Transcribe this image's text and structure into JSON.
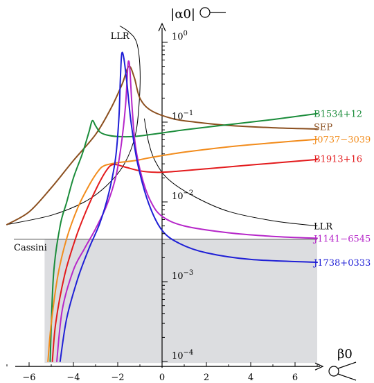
{
  "chart_data": {
    "type": "line",
    "title": "",
    "xlabel": "β0",
    "ylabel": "|α0|",
    "xlim": [
      -7.2,
      7.2
    ],
    "ylog": true,
    "ylim": [
      8e-05,
      1.8
    ],
    "grid": false,
    "x_ticks": [
      -6,
      -4,
      -2,
      0,
      2,
      4,
      6
    ],
    "x_tick_labels": [
      "−6",
      "−4",
      "−2",
      "0",
      "2",
      "4",
      "6"
    ],
    "y_ticks": [
      {
        "value": 1.0,
        "base": "10",
        "exp": "0"
      },
      {
        "value": 0.1,
        "base": "10",
        "exp": "−1"
      },
      {
        "value": 0.01,
        "base": "10",
        "exp": "−2"
      },
      {
        "value": 0.001,
        "base": "10",
        "exp": "−3"
      },
      {
        "value": 0.0001,
        "base": "10",
        "exp": "−4"
      }
    ],
    "cassini": {
      "label": "Cassini",
      "value": 0.0034,
      "color": "#555555",
      "shade_color": "#dcdde0",
      "shade_x": [
        -5.3,
        7.0
      ]
    },
    "series": [
      {
        "name": "LLR",
        "color": "#000000",
        "points": [
          [
            -7.0,
            0.0052
          ],
          [
            -5.0,
            0.0068
          ],
          [
            -3.5,
            0.01
          ],
          [
            -2.5,
            0.016
          ],
          [
            -1.7,
            0.03
          ],
          [
            -1.2,
            0.07
          ],
          [
            -1.02,
            0.2
          ],
          [
            -1.0,
            0.5
          ],
          [
            -1.15,
            1.0
          ],
          [
            -1.5,
            1.35
          ],
          [
            -1.9,
            1.6
          ]
        ]
      },
      {
        "name": "LLR",
        "color": "#000000",
        "points": [
          [
            -0.8,
            0.11
          ],
          [
            -0.6,
            0.055
          ],
          [
            -0.3,
            0.032
          ],
          [
            0.3,
            0.019
          ],
          [
            1.5,
            0.0115
          ],
          [
            3.0,
            0.0076
          ],
          [
            5.0,
            0.0058
          ],
          [
            7.0,
            0.005
          ]
        ]
      },
      {
        "name": "SEP",
        "color": "#8b4f1f",
        "points": [
          [
            -7.0,
            0.0052
          ],
          [
            -6.0,
            0.0075
          ],
          [
            -5.0,
            0.015
          ],
          [
            -4.0,
            0.033
          ],
          [
            -3.0,
            0.07
          ],
          [
            -2.3,
            0.15
          ],
          [
            -1.8,
            0.3
          ],
          [
            -1.5,
            0.5
          ],
          [
            -1.25,
            0.36
          ],
          [
            -1.0,
            0.2
          ],
          [
            -0.5,
            0.14
          ],
          [
            0.5,
            0.11
          ],
          [
            1.5,
            0.1
          ],
          [
            3.0,
            0.091
          ],
          [
            5.0,
            0.085
          ],
          [
            7.0,
            0.082
          ]
        ]
      },
      {
        "name": "B1534+12",
        "color": "#1a8c3a",
        "points": [
          [
            -5.05,
            0.0001
          ],
          [
            -4.9,
            0.0012
          ],
          [
            -4.6,
            0.005
          ],
          [
            -4.3,
            0.01
          ],
          [
            -4.0,
            0.02
          ],
          [
            -3.6,
            0.04
          ],
          [
            -3.3,
            0.075
          ],
          [
            -3.15,
            0.104
          ],
          [
            -3.0,
            0.09
          ],
          [
            -2.8,
            0.075
          ],
          [
            -2.5,
            0.069
          ],
          [
            -2.0,
            0.066
          ],
          [
            -1.3,
            0.066
          ],
          [
            -0.5,
            0.07
          ],
          [
            1.0,
            0.08
          ],
          [
            3.0,
            0.093
          ],
          [
            5.0,
            0.108
          ],
          [
            7.0,
            0.128
          ]
        ]
      },
      {
        "name": "J0737−3039",
        "color": "#f28c1c",
        "points": [
          [
            -5.15,
            0.0001
          ],
          [
            -5.0,
            0.0003
          ],
          [
            -4.7,
            0.0012
          ],
          [
            -4.3,
            0.0035
          ],
          [
            -3.8,
            0.0085
          ],
          [
            -3.3,
            0.016
          ],
          [
            -2.9,
            0.024
          ],
          [
            -2.6,
            0.0285
          ],
          [
            -2.0,
            0.031
          ],
          [
            -1.2,
            0.033
          ],
          [
            -0.5,
            0.036
          ],
          [
            1.0,
            0.042
          ],
          [
            3.0,
            0.049
          ],
          [
            5.0,
            0.055
          ],
          [
            7.0,
            0.061
          ]
        ]
      },
      {
        "name": "B1913+16",
        "color": "#e31a1c",
        "points": [
          [
            -4.95,
            0.0001
          ],
          [
            -4.8,
            0.0003
          ],
          [
            -4.4,
            0.0012
          ],
          [
            -3.9,
            0.0035
          ],
          [
            -3.4,
            0.008
          ],
          [
            -2.9,
            0.016
          ],
          [
            -2.5,
            0.025
          ],
          [
            -2.2,
            0.0295
          ],
          [
            -1.7,
            0.0275
          ],
          [
            -1.0,
            0.0245
          ],
          [
            -0.3,
            0.0235
          ],
          [
            0.5,
            0.024
          ],
          [
            2.0,
            0.026
          ],
          [
            4.0,
            0.029
          ],
          [
            7.0,
            0.034
          ]
        ]
      },
      {
        "name": "J1141−6545",
        "color": "#b627c9",
        "points": [
          [
            -4.75,
            0.0001
          ],
          [
            -4.5,
            0.00045
          ],
          [
            -4.0,
            0.0014
          ],
          [
            -3.5,
            0.0026
          ],
          [
            -3.0,
            0.0046
          ],
          [
            -2.5,
            0.009
          ],
          [
            -2.1,
            0.02
          ],
          [
            -1.85,
            0.05
          ],
          [
            -1.65,
            0.16
          ],
          [
            -1.55,
            0.48
          ],
          [
            -1.5,
            0.58
          ],
          [
            -1.45,
            0.45
          ],
          [
            -1.35,
            0.15
          ],
          [
            -1.2,
            0.05
          ],
          [
            -0.9,
            0.02
          ],
          [
            -0.5,
            0.01
          ],
          [
            0.0,
            0.0066
          ],
          [
            1.0,
            0.005
          ],
          [
            3.0,
            0.0041
          ],
          [
            5.0,
            0.0037
          ],
          [
            7.0,
            0.0035
          ]
        ]
      },
      {
        "name": "J1738+0333",
        "color": "#1f1fd6",
        "points": [
          [
            -4.6,
            0.0001
          ],
          [
            -4.3,
            0.00035
          ],
          [
            -3.8,
            0.0011
          ],
          [
            -3.3,
            0.0026
          ],
          [
            -2.8,
            0.0055
          ],
          [
            -2.4,
            0.013
          ],
          [
            -2.1,
            0.035
          ],
          [
            -1.95,
            0.11
          ],
          [
            -1.88,
            0.35
          ],
          [
            -1.82,
            0.72
          ],
          [
            -1.72,
            0.62
          ],
          [
            -1.58,
            0.3
          ],
          [
            -1.4,
            0.1
          ],
          [
            -1.1,
            0.03
          ],
          [
            -0.6,
            0.0095
          ],
          [
            0.0,
            0.0044
          ],
          [
            0.8,
            0.003
          ],
          [
            2.0,
            0.0023
          ],
          [
            4.0,
            0.0019
          ],
          [
            7.0,
            0.00175
          ]
        ]
      }
    ],
    "labels": [
      {
        "text": "LLR",
        "x": -1.9,
        "y": 2.0,
        "color": "#000000"
      },
      {
        "text": "B1534+12",
        "x": 7.6,
        "y": 0.128,
        "color": "#1a8c3a"
      },
      {
        "text": "SEP",
        "x": 7.6,
        "y": 0.088,
        "color": "#8b4f1f"
      },
      {
        "text": "J0737−3039",
        "x": 7.6,
        "y": 0.061,
        "color": "#f28c1c"
      },
      {
        "text": "B1913+16",
        "x": 7.6,
        "y": 0.035,
        "color": "#e31a1c"
      },
      {
        "text": "LLR",
        "x": 7.6,
        "y": 0.005,
        "color": "#000000"
      },
      {
        "text": "J1141−6545",
        "x": 7.6,
        "y": 0.0035,
        "color": "#b627c9"
      },
      {
        "text": "J1738+0333",
        "x": 7.6,
        "y": 0.00175,
        "color": "#1f1fd6"
      }
    ]
  }
}
